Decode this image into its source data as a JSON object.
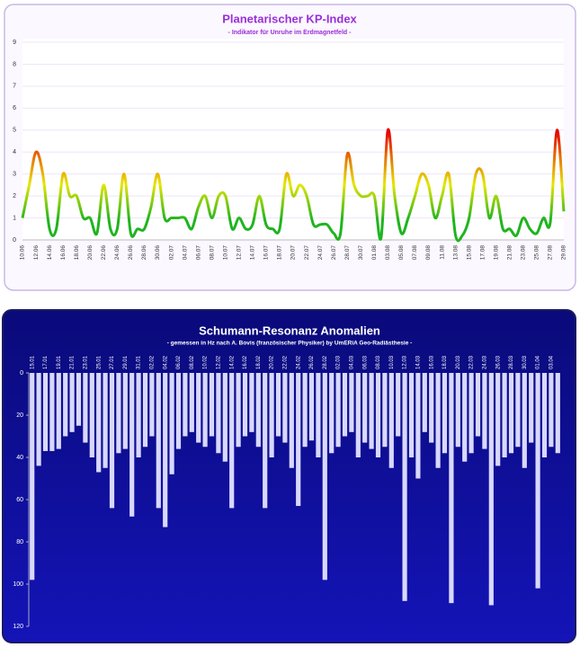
{
  "chart_data": [
    {
      "type": "line",
      "title": "Planetarischer KP-Index",
      "subtitle": "- Indikator für Unruhe im Erdmagnetfeld -",
      "categories": [
        "10.06",
        null,
        "12.06",
        null,
        "14.06",
        null,
        "16.06",
        null,
        "18.06",
        null,
        "20.06",
        null,
        "22.06",
        null,
        "24.06",
        null,
        "26.06",
        null,
        "28.06",
        null,
        "30.06",
        null,
        "02.07",
        null,
        "04.07",
        null,
        "06.07",
        null,
        "08.07",
        null,
        "10.07",
        null,
        "12.07",
        null,
        "14.07",
        null,
        "16.07",
        null,
        "18.07",
        null,
        "20.07",
        null,
        "22.07",
        null,
        "24.07",
        null,
        "26.07",
        null,
        "28.07",
        null,
        "30.07",
        null,
        "01.08",
        null,
        "03.08",
        null,
        "05.08",
        null,
        "07.08",
        null,
        "09.08",
        null,
        "11.08",
        null,
        "13.08",
        null,
        "15.08",
        null,
        "17.08",
        null,
        "19.08",
        null,
        "21.08",
        null,
        "23.08",
        null,
        "25.08",
        null,
        "27.08",
        null,
        "29.08"
      ],
      "values": [
        1,
        2.5,
        4,
        3,
        0.5,
        0.5,
        3,
        2,
        2,
        1,
        1,
        0.3,
        2.5,
        0.5,
        0.5,
        3,
        0.3,
        0.5,
        0.5,
        1.5,
        3,
        1,
        1,
        1,
        1,
        0.5,
        1.5,
        2,
        1,
        2,
        2,
        0.5,
        1,
        0.5,
        0.7,
        2,
        0.7,
        0.5,
        0.5,
        3,
        2,
        2.5,
        2,
        0.7,
        0.7,
        0.7,
        0.3,
        0.3,
        3.9,
        2.5,
        2,
        2,
        2,
        0.1,
        5,
        2,
        0.3,
        1,
        2,
        3,
        2.5,
        1,
        2,
        3,
        0.2,
        0.2,
        1,
        3,
        3,
        1,
        2,
        0.5,
        0.5,
        0.2,
        1,
        0.5,
        0.3,
        1,
        0.8,
        5,
        1.3
      ],
      "colors": [
        "#1fb41f",
        "#e6e600",
        "#e60000"
      ],
      "ylim": [
        0,
        9
      ],
      "yticks": [
        0,
        1,
        2,
        3,
        4,
        5,
        6,
        7,
        8,
        9
      ]
    },
    {
      "type": "bar",
      "title": "Schumann-Resonanz Anomalien",
      "subtitle": "- gemessen in Hz nach A. Bovis (französischer Physiker) by UmERiA Geo-Radiästhesie -",
      "categories": [
        "15.01",
        null,
        "17.01",
        null,
        "19.01",
        null,
        "21.01",
        null,
        "23.01",
        null,
        "25.01",
        null,
        "27.01",
        null,
        "29.01",
        null,
        "31.01",
        null,
        "02.02",
        null,
        "04.02",
        null,
        "06.02",
        null,
        "08.02",
        null,
        "10.02",
        null,
        "12.02",
        null,
        "14.02",
        null,
        "16.02",
        null,
        "18.02",
        null,
        "20.02",
        null,
        "22.02",
        null,
        "24.02",
        null,
        "26.02",
        null,
        "28.02",
        null,
        "02.03",
        null,
        "04.03",
        null,
        "06.03",
        null,
        "08.03",
        null,
        "10.03",
        null,
        "12.03",
        null,
        "14.03",
        null,
        "16.03",
        null,
        "18.03",
        null,
        "20.03",
        null,
        "22.03",
        null,
        "24.03",
        null,
        "26.03",
        null,
        "28.03",
        null,
        "30.03",
        null,
        "01.04",
        null,
        "03.04",
        null
      ],
      "values": [
        98,
        44,
        37,
        37,
        36,
        30,
        28,
        25,
        33,
        40,
        47,
        45,
        64,
        38,
        36,
        68,
        40,
        35,
        30,
        64,
        73,
        48,
        36,
        30,
        28,
        33,
        35,
        30,
        38,
        42,
        64,
        35,
        30,
        28,
        35,
        64,
        40,
        30,
        33,
        45,
        63,
        35,
        32,
        40,
        98,
        38,
        35,
        30,
        28,
        40,
        33,
        36,
        40,
        35,
        45,
        30,
        108,
        40,
        50,
        28,
        33,
        45,
        38,
        109,
        35,
        42,
        38,
        30,
        36,
        110,
        44,
        40,
        38,
        35,
        45,
        33,
        102,
        40,
        35,
        38
      ],
      "color": "#d8d8ff",
      "ylim": [
        0,
        120
      ],
      "yticks": [
        0,
        20,
        40,
        60,
        80,
        100,
        120
      ],
      "y_inverted": true
    }
  ]
}
